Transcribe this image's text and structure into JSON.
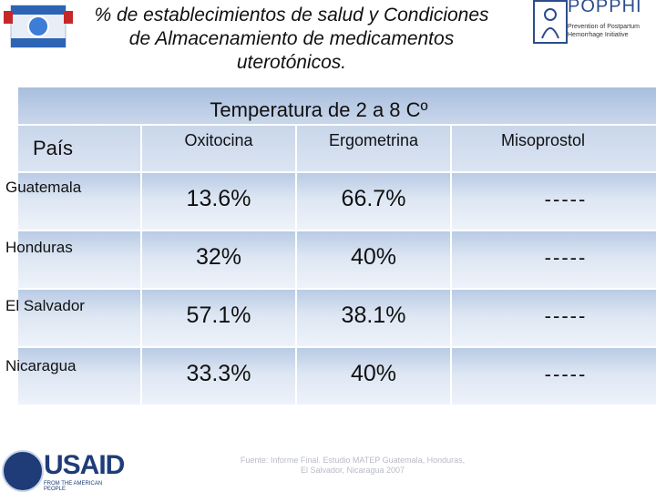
{
  "title": "% de establecimientos de salud  y Condiciones de Almacenamiento de medicamentos uterotónicos.",
  "logo": {
    "name": "POPPHI",
    "subtitle": "Prevention of Postpartum Hemorrhage Initiative"
  },
  "table": {
    "group_header": "Temperatura de 2 a 8 Cº",
    "country_header": "País",
    "columns": [
      "Oxitocina",
      "Ergometrina",
      "Misoprostol"
    ],
    "rows": [
      {
        "country": "Guatemala",
        "values": [
          "13.6%",
          "66.7%",
          "-----"
        ]
      },
      {
        "country": "Honduras",
        "values": [
          "32%",
          "40%",
          "-----"
        ]
      },
      {
        "country": "El Salvador",
        "values": [
          "57.1%",
          "38.1%",
          "-----"
        ]
      },
      {
        "country": "Nicaragua",
        "values": [
          "33.3%",
          "40%",
          "-----"
        ]
      }
    ]
  },
  "footer_logo": {
    "name": "USAID",
    "tagline": "FROM THE AMERICAN PEOPLE"
  },
  "footer_note": "Fuente: Informe Final. Estudio MATEP Guatemala, Honduras, El Salvador, Nicaragua 2007"
}
